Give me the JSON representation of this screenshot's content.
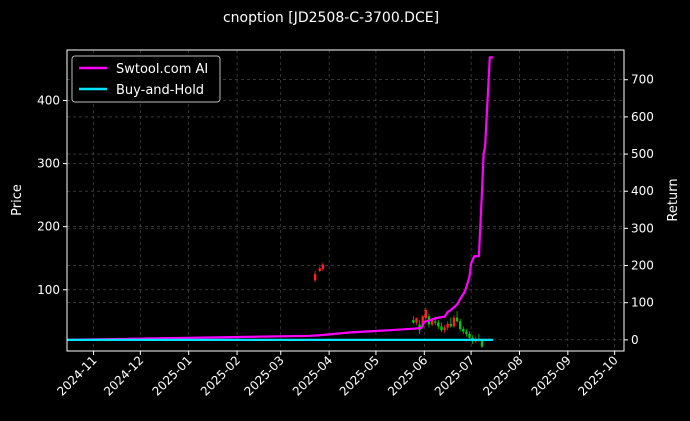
{
  "chart_data": {
    "type": "line",
    "title": "cnoption [JD2508-C-3700.DCE]",
    "ylabel_left": "Price",
    "ylabel_right": "Return",
    "x_ticks": [
      "2024-11",
      "2024-12",
      "2025-01",
      "2025-02",
      "2025-03",
      "2025-04",
      "2025-05",
      "2025-06",
      "2025-07",
      "2025-08",
      "2025-09",
      "2025-10"
    ],
    "xlim": [
      "2024-10-15",
      "2025-10-07"
    ],
    "ylim_left": [
      3,
      480
    ],
    "ylim_right": [
      -30,
      780
    ],
    "y_ticks_left": [
      100,
      200,
      300,
      400
    ],
    "y_ticks_right": [
      0,
      100,
      200,
      300,
      400,
      500,
      600,
      700
    ],
    "grid": true,
    "legend_position": "top-left",
    "colors": {
      "ai": "#ff00ff",
      "hold": "#00e5ff",
      "up": "#ff2020",
      "down": "#00cc00",
      "background": "#000000",
      "grid": "#555555"
    },
    "series": [
      {
        "name": "Swtool.com AI",
        "axis": "right",
        "points": [
          [
            "2024-10-15",
            0
          ],
          [
            "2025-03-20",
            11
          ],
          [
            "2025-03-25",
            12
          ],
          [
            "2025-04-15",
            20
          ],
          [
            "2025-05-10",
            26
          ],
          [
            "2025-05-25",
            30
          ],
          [
            "2025-05-30",
            32
          ],
          [
            "2025-06-01",
            48
          ],
          [
            "2025-06-04",
            52
          ],
          [
            "2025-06-06",
            55
          ],
          [
            "2025-06-10",
            60
          ],
          [
            "2025-06-14",
            62
          ],
          [
            "2025-06-16",
            75
          ],
          [
            "2025-06-18",
            80
          ],
          [
            "2025-06-22",
            95
          ],
          [
            "2025-06-24",
            110
          ],
          [
            "2025-06-27",
            130
          ],
          [
            "2025-06-30",
            170
          ],
          [
            "2025-07-01",
            205
          ],
          [
            "2025-07-03",
            225
          ],
          [
            "2025-07-06",
            225
          ],
          [
            "2025-07-08",
            400
          ],
          [
            "2025-07-09",
            500
          ],
          [
            "2025-07-10",
            520
          ],
          [
            "2025-07-13",
            760
          ],
          [
            "2025-07-15",
            760
          ]
        ]
      },
      {
        "name": "Buy-and-Hold",
        "axis": "right",
        "points": [
          [
            "2024-10-15",
            0
          ],
          [
            "2025-07-15",
            0
          ]
        ]
      }
    ],
    "candles": [
      {
        "date": "2025-03-23",
        "open": 115,
        "high": 130,
        "low": 112,
        "close": 125
      },
      {
        "date": "2025-03-26",
        "open": 130,
        "high": 136,
        "low": 128,
        "close": 134
      },
      {
        "date": "2025-03-28",
        "open": 133,
        "high": 143,
        "low": 130,
        "close": 140
      },
      {
        "date": "2025-05-25",
        "open": 52,
        "high": 58,
        "low": 46,
        "close": 48
      },
      {
        "date": "2025-05-27",
        "open": 48,
        "high": 56,
        "low": 44,
        "close": 55
      },
      {
        "date": "2025-05-29",
        "open": 45,
        "high": 52,
        "low": 30,
        "close": 36
      },
      {
        "date": "2025-05-31",
        "open": 42,
        "high": 60,
        "low": 40,
        "close": 58
      },
      {
        "date": "2025-06-02",
        "open": 55,
        "high": 72,
        "low": 50,
        "close": 68
      },
      {
        "date": "2025-06-04",
        "open": 58,
        "high": 62,
        "low": 40,
        "close": 45
      },
      {
        "date": "2025-06-06",
        "open": 45,
        "high": 55,
        "low": 42,
        "close": 52
      },
      {
        "date": "2025-06-08",
        "open": 50,
        "high": 58,
        "low": 44,
        "close": 48
      },
      {
        "date": "2025-06-10",
        "open": 48,
        "high": 52,
        "low": 38,
        "close": 42
      },
      {
        "date": "2025-06-12",
        "open": 42,
        "high": 48,
        "low": 33,
        "close": 36
      },
      {
        "date": "2025-06-14",
        "open": 36,
        "high": 44,
        "low": 32,
        "close": 40
      },
      {
        "date": "2025-06-16",
        "open": 40,
        "high": 50,
        "low": 36,
        "close": 46
      },
      {
        "date": "2025-06-18",
        "open": 46,
        "high": 56,
        "low": 40,
        "close": 42
      },
      {
        "date": "2025-06-20",
        "open": 42,
        "high": 60,
        "low": 40,
        "close": 56
      },
      {
        "date": "2025-06-22",
        "open": 56,
        "high": 66,
        "low": 48,
        "close": 50
      },
      {
        "date": "2025-06-24",
        "open": 50,
        "high": 54,
        "low": 34,
        "close": 38
      },
      {
        "date": "2025-06-26",
        "open": 38,
        "high": 42,
        "low": 30,
        "close": 34
      },
      {
        "date": "2025-06-28",
        "open": 34,
        "high": 38,
        "low": 26,
        "close": 30
      },
      {
        "date": "2025-06-30",
        "open": 30,
        "high": 34,
        "low": 20,
        "close": 24
      },
      {
        "date": "2025-07-02",
        "open": 24,
        "high": 28,
        "low": 14,
        "close": 18
      },
      {
        "date": "2025-07-04",
        "open": 18,
        "high": 26,
        "low": 16,
        "close": 22
      },
      {
        "date": "2025-07-06",
        "open": 22,
        "high": 30,
        "low": 18,
        "close": 20
      },
      {
        "date": "2025-07-08",
        "open": 20,
        "high": 22,
        "low": 8,
        "close": 10
      }
    ]
  }
}
